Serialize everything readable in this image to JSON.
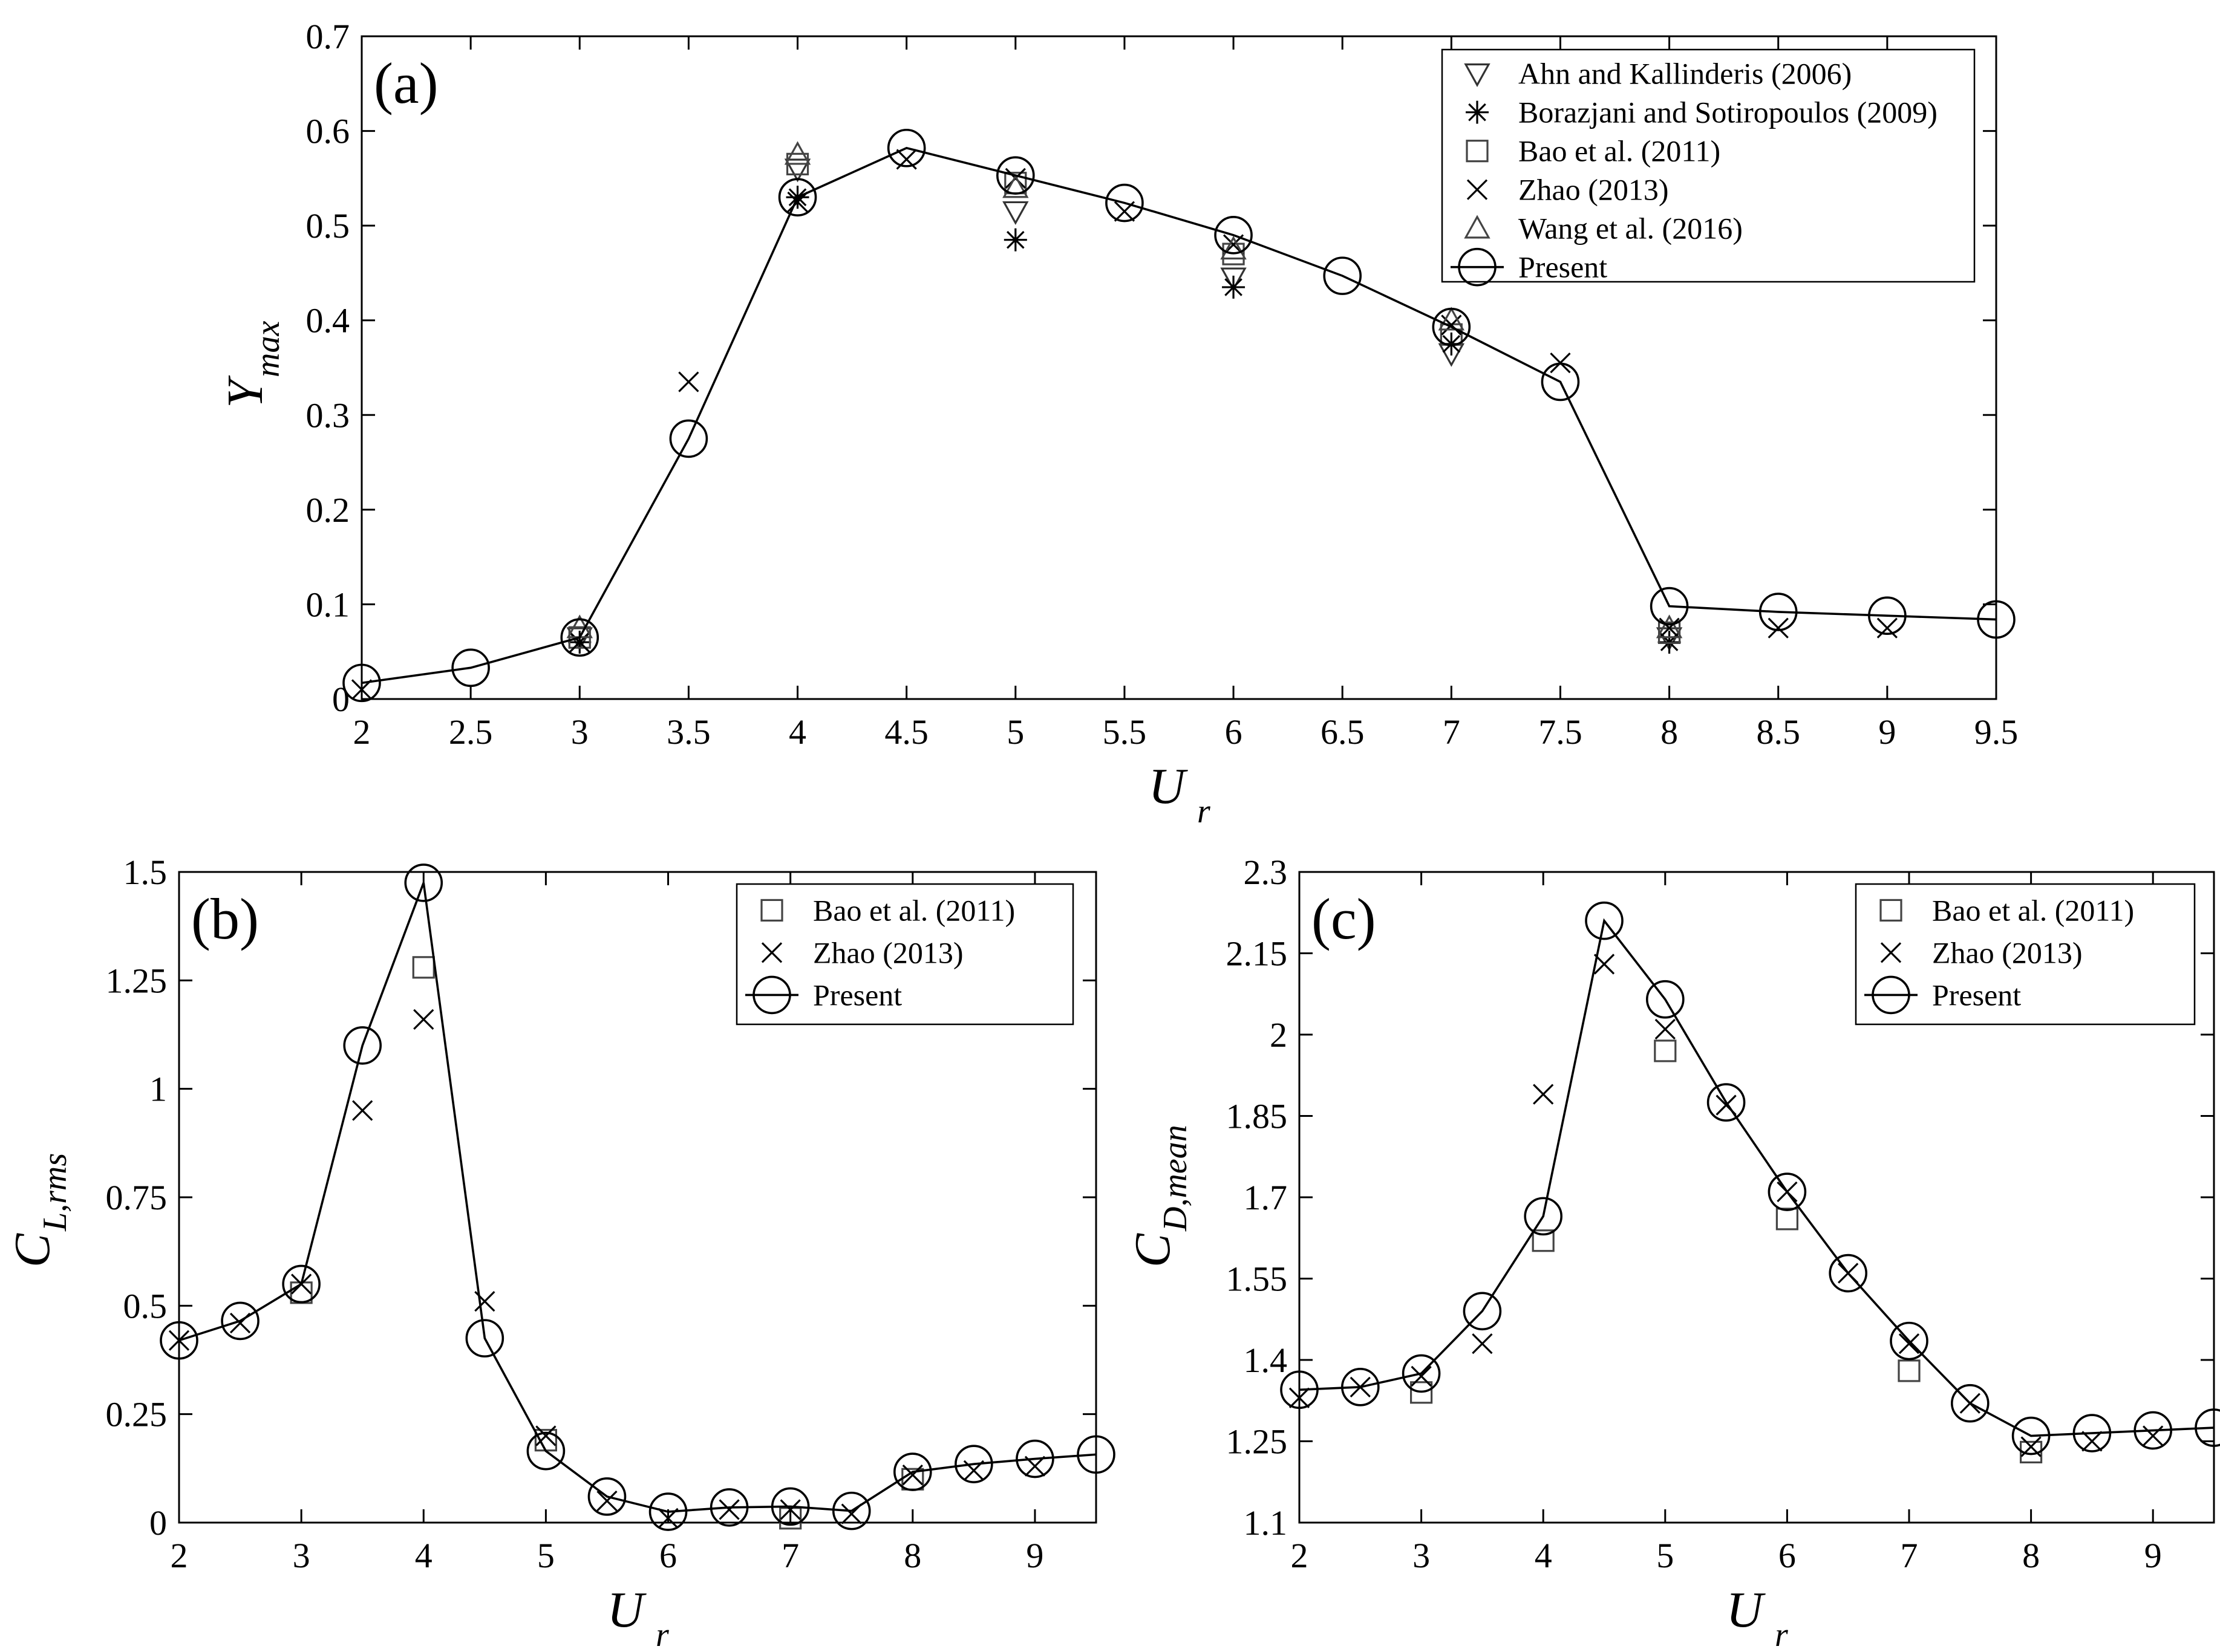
{
  "chart_data": [
    {
      "id": "a",
      "type": "line",
      "panel_label": "(a)",
      "xlabel": "U",
      "xlabel_sub": "r",
      "ylabel": "Y",
      "ylabel_sub": "max",
      "xlim": [
        2,
        9.5
      ],
      "ylim": [
        0,
        0.7
      ],
      "xticks": [
        2,
        2.5,
        3,
        3.5,
        4,
        4.5,
        5,
        5.5,
        6,
        6.5,
        7,
        7.5,
        8,
        8.5,
        9,
        9.5
      ],
      "xtick_labels": [
        "2",
        "2.5",
        "3",
        "3.5",
        "4",
        "4.5",
        "5",
        "5.5",
        "6",
        "6.5",
        "7",
        "7.5",
        "8",
        "8.5",
        "9",
        "9.5"
      ],
      "yticks": [
        0,
        0.1,
        0.2,
        0.3,
        0.4,
        0.5,
        0.6,
        0.7
      ],
      "ytick_labels": [
        "0",
        "0.1",
        "0.2",
        "0.3",
        "0.4",
        "0.5",
        "0.6",
        "0.7"
      ],
      "legend": "top-right",
      "series": [
        {
          "name": "Ahn and Kallinderis (2006)",
          "marker": "triangle-down",
          "x": [
            3,
            4,
            5,
            6,
            7,
            8
          ],
          "y": [
            0.065,
            0.56,
            0.515,
            0.445,
            0.365,
            0.065
          ]
        },
        {
          "name": "Borazjani and Sotiropoulos (2009)",
          "marker": "asterisk",
          "x": [
            3,
            4,
            5,
            6,
            7,
            8
          ],
          "y": [
            0.06,
            0.53,
            0.485,
            0.435,
            0.375,
            0.06
          ]
        },
        {
          "name": "Bao et al. (2011)",
          "marker": "square",
          "x": [
            3,
            4,
            5,
            6,
            7,
            8
          ],
          "y": [
            0.065,
            0.565,
            0.545,
            0.47,
            0.385,
            0.07
          ]
        },
        {
          "name": "Zhao (2013)",
          "marker": "x",
          "x": [
            2,
            3,
            3.5,
            4,
            4.5,
            5,
            5.5,
            6,
            7,
            7.5,
            8,
            8.5,
            9
          ],
          "y": [
            0.01,
            0.06,
            0.335,
            0.525,
            0.57,
            0.55,
            0.515,
            0.48,
            0.395,
            0.355,
            0.075,
            0.075,
            0.075
          ]
        },
        {
          "name": "Wang et al. (2016)",
          "marker": "triangle-up",
          "x": [
            3,
            4,
            5,
            6,
            7,
            8
          ],
          "y": [
            0.075,
            0.575,
            0.54,
            0.475,
            0.4,
            0.075
          ]
        },
        {
          "name": "Present",
          "marker": "circle-line",
          "x": [
            2,
            2.5,
            3,
            3.5,
            4,
            4.5,
            5,
            5.5,
            6,
            6.5,
            7,
            7.5,
            8,
            8.5,
            9,
            9.5
          ],
          "y": [
            0.017,
            0.033,
            0.065,
            0.275,
            0.53,
            0.582,
            0.553,
            0.524,
            0.49,
            0.447,
            0.393,
            0.335,
            0.098,
            0.092,
            0.088,
            0.084
          ]
        }
      ]
    },
    {
      "id": "b",
      "type": "line",
      "panel_label": "(b)",
      "xlabel": "U",
      "xlabel_sub": "r",
      "ylabel": "C",
      "ylabel_sub": "L,rms",
      "xlim": [
        2,
        9.5
      ],
      "ylim": [
        0,
        1.5
      ],
      "xticks": [
        2,
        3,
        4,
        5,
        6,
        7,
        8,
        9
      ],
      "xtick_labels": [
        "2",
        "3",
        "4",
        "5",
        "6",
        "7",
        "8",
        "9"
      ],
      "yticks": [
        0,
        0.25,
        0.5,
        0.75,
        1,
        1.25,
        1.5
      ],
      "ytick_labels": [
        "0",
        "0.25",
        "0.5",
        "0.75",
        "1",
        "1.25",
        "1.5"
      ],
      "legend": "top-right",
      "series": [
        {
          "name": "Bao et al. (2011)",
          "marker": "square",
          "x": [
            3,
            4,
            5,
            7,
            8
          ],
          "y": [
            0.53,
            1.28,
            0.19,
            0.01,
            0.1
          ]
        },
        {
          "name": "Zhao (2013)",
          "marker": "x",
          "x": [
            2,
            2.5,
            3,
            3.5,
            4,
            4.5,
            5,
            5.5,
            6,
            6.5,
            7,
            7.5,
            8,
            8.5,
            9
          ],
          "y": [
            0.42,
            0.46,
            0.55,
            0.95,
            1.16,
            0.51,
            0.2,
            0.05,
            0.01,
            0.03,
            0.03,
            0.02,
            0.11,
            0.12,
            0.13
          ]
        },
        {
          "name": "Present",
          "marker": "circle-line",
          "x": [
            2,
            2.5,
            3,
            3.5,
            4,
            4.5,
            5,
            5.5,
            6,
            6.5,
            7,
            7.5,
            8,
            8.5,
            9,
            9.5
          ],
          "y": [
            0.42,
            0.465,
            0.55,
            1.1,
            1.475,
            0.425,
            0.165,
            0.06,
            0.025,
            0.035,
            0.037,
            0.027,
            0.117,
            0.135,
            0.147,
            0.157
          ]
        }
      ]
    },
    {
      "id": "c",
      "type": "line",
      "panel_label": "(c)",
      "xlabel": "U",
      "xlabel_sub": "r",
      "ylabel": "C",
      "ylabel_sub": "D,mean",
      "xlim": [
        2,
        9.5
      ],
      "ylim": [
        1.1,
        2.3
      ],
      "xticks": [
        2,
        3,
        4,
        5,
        6,
        7,
        8,
        9
      ],
      "xtick_labels": [
        "2",
        "3",
        "4",
        "5",
        "6",
        "7",
        "8",
        "9"
      ],
      "yticks": [
        1.1,
        1.25,
        1.4,
        1.55,
        1.7,
        1.85,
        2,
        2.15,
        2.3
      ],
      "ytick_labels": [
        "1.1",
        "1.25",
        "1.4",
        "1.55",
        "1.7",
        "1.85",
        "2",
        "2.15",
        "2.3"
      ],
      "legend": "top-right",
      "series": [
        {
          "name": "Bao et al. (2011)",
          "marker": "square",
          "x": [
            3,
            4,
            5,
            6,
            7,
            8
          ],
          "y": [
            1.34,
            1.62,
            1.97,
            1.66,
            1.38,
            1.23
          ]
        },
        {
          "name": "Zhao (2013)",
          "marker": "x",
          "x": [
            2,
            2.5,
            3,
            3.5,
            4,
            4.5,
            5,
            5.5,
            6,
            6.5,
            7,
            7.5,
            8,
            8.5,
            9
          ],
          "y": [
            1.33,
            1.35,
            1.37,
            1.43,
            1.89,
            2.13,
            2.01,
            1.87,
            1.71,
            1.56,
            1.43,
            1.32,
            1.24,
            1.25,
            1.26
          ]
        },
        {
          "name": "Present",
          "marker": "circle-line",
          "x": [
            2,
            2.5,
            3,
            3.5,
            4,
            4.5,
            5,
            5.5,
            6,
            6.5,
            7,
            7.5,
            8,
            8.5,
            9,
            9.5
          ],
          "y": [
            1.345,
            1.35,
            1.375,
            1.49,
            1.665,
            2.21,
            2.065,
            1.875,
            1.71,
            1.56,
            1.435,
            1.32,
            1.26,
            1.265,
            1.27,
            1.275
          ]
        }
      ]
    }
  ]
}
